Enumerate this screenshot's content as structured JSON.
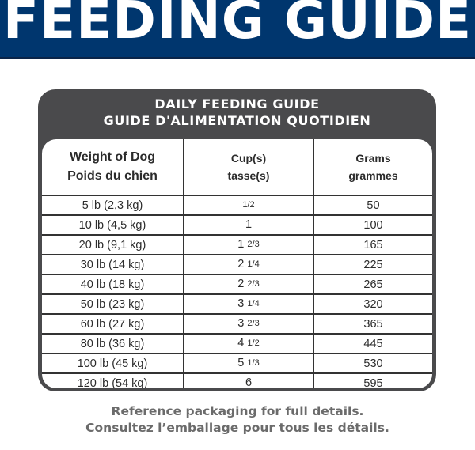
{
  "banner": {
    "title": "FEEDING GUIDE",
    "background_color": "#00366e"
  },
  "guide": {
    "heading_en": "DAILY FEEDING GUIDE",
    "heading_fr": "GUIDE D'ALIMENTATION QUOTIDIEN",
    "box_color": "#4a4a4c",
    "columns": [
      {
        "en": "Weight of Dog",
        "fr": "Poids du chien"
      },
      {
        "en": "Cup(s)",
        "fr": "tasse(s)"
      },
      {
        "en": "Grams",
        "fr": "grammes"
      }
    ],
    "rows": [
      {
        "weight": "5 lb (2,3 kg)",
        "cups_whole": "",
        "cups_frac": "1/2",
        "grams": "50"
      },
      {
        "weight": "10 lb (4,5 kg)",
        "cups_whole": "1",
        "cups_frac": "",
        "grams": "100"
      },
      {
        "weight": "20 lb (9,1 kg)",
        "cups_whole": "1",
        "cups_frac": "2/3",
        "grams": "165"
      },
      {
        "weight": "30 lb (14 kg)",
        "cups_whole": "2",
        "cups_frac": "1/4",
        "grams": "225"
      },
      {
        "weight": "40 lb (18 kg)",
        "cups_whole": "2",
        "cups_frac": "2/3",
        "grams": "265"
      },
      {
        "weight": "50 lb (23 kg)",
        "cups_whole": "3",
        "cups_frac": "1/4",
        "grams": "320"
      },
      {
        "weight": "60 lb (27 kg)",
        "cups_whole": "3",
        "cups_frac": "2/3",
        "grams": "365"
      },
      {
        "weight": "80 lb (36 kg)",
        "cups_whole": "4",
        "cups_frac": "1/2",
        "grams": "445"
      },
      {
        "weight": "100 lb (45 kg)",
        "cups_whole": "5",
        "cups_frac": "1/3",
        "grams": "530"
      },
      {
        "weight": "120 lb (54 kg)",
        "cups_whole": "6",
        "cups_frac": "",
        "grams": "595"
      }
    ]
  },
  "footnote": {
    "en": "Reference packaging for full details.",
    "fr": "Consultez l’emballage pour tous les détails."
  }
}
